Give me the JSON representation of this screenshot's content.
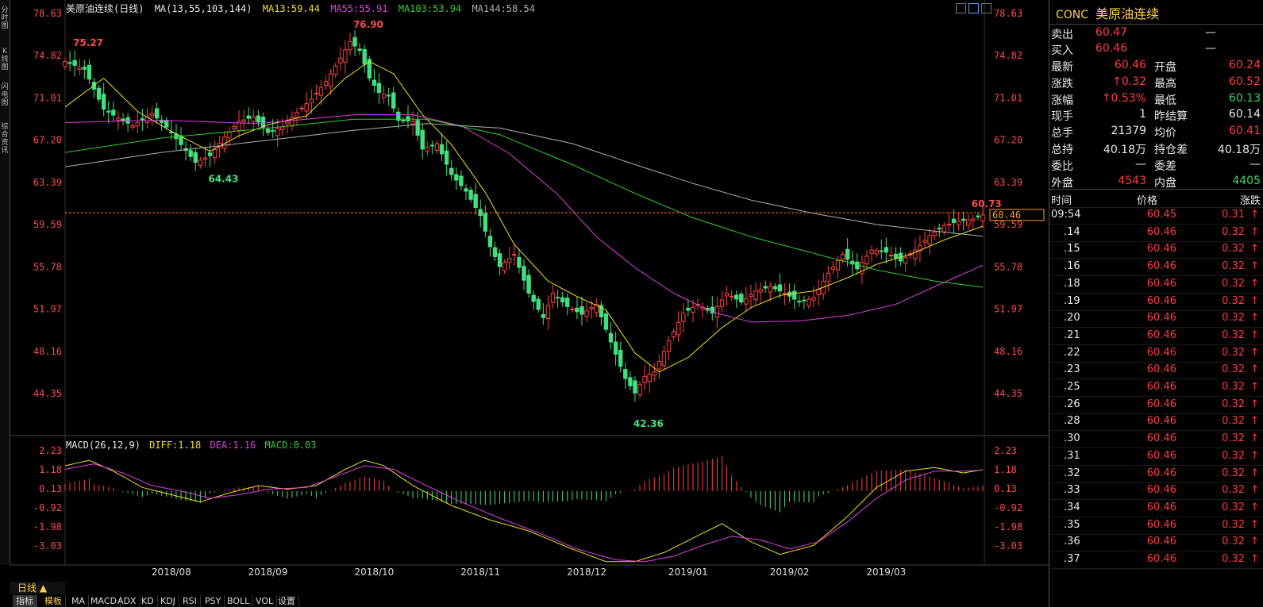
{
  "sidebar_tabs": [
    "分时图",
    "K线图",
    "闪电图",
    "综合资讯"
  ],
  "header": {
    "name": "美原油连续(日线)",
    "ma_label": "MA(13,55,103,144)",
    "ma13": "MA13:59.44",
    "ma55": "MA55:55.91",
    "ma103": "MA103:53.94",
    "ma144": "MA144:58.54"
  },
  "macd_header": {
    "params": "MACD(26,12,9)",
    "diff": "DIFF:1.18",
    "dea": "DEA:1.16",
    "macd": "MACD:0.03"
  },
  "chart_data": {
    "type": "line",
    "title": "美原油连续(日线)",
    "price_axis": [
      "78.63",
      "74.82",
      "71.01",
      "67.20",
      "63.39",
      "59.59",
      "55.78",
      "51.97",
      "48.16",
      "44.35"
    ],
    "macd_axis": [
      "2.23",
      "1.18",
      "0.13",
      "-0.92",
      "-1.98",
      "-3.03"
    ],
    "x_labels": [
      "2018/08",
      "2018/09",
      "2018/10",
      "2018/11",
      "2018/12",
      "2019/01",
      "2019/02",
      "2019/03"
    ],
    "annotations": {
      "high": "76.90",
      "low": "42.36",
      "early_high": "75.27",
      "mid_low": "64.43",
      "last_high": "60.73",
      "current_price": "60.46"
    },
    "close_path": [
      [
        0,
        74.3
      ],
      [
        4,
        73.6
      ],
      [
        8,
        70.0
      ],
      [
        11,
        69.2
      ],
      [
        14,
        68.5
      ],
      [
        18,
        69.6
      ],
      [
        21,
        68.4
      ],
      [
        24,
        66.8
      ],
      [
        27,
        65.2
      ],
      [
        30,
        65.8
      ],
      [
        33,
        67.5
      ],
      [
        36,
        68.9
      ],
      [
        39,
        69.3
      ],
      [
        42,
        67.9
      ],
      [
        45,
        68.4
      ],
      [
        48,
        69.7
      ],
      [
        51,
        70.9
      ],
      [
        54,
        72.5
      ],
      [
        57,
        74.6
      ],
      [
        59,
        76.1
      ],
      [
        61,
        75.3
      ],
      [
        63,
        72.8
      ],
      [
        65,
        71.5
      ],
      [
        67,
        71.2
      ],
      [
        69,
        69.0
      ],
      [
        72,
        68.9
      ],
      [
        74,
        66.4
      ],
      [
        77,
        66.9
      ],
      [
        80,
        64.1
      ],
      [
        83,
        62.6
      ],
      [
        86,
        60.4
      ],
      [
        88,
        57.6
      ],
      [
        90,
        55.8
      ],
      [
        93,
        56.9
      ],
      [
        96,
        53.4
      ],
      [
        99,
        51.2
      ],
      [
        101,
        53.4
      ],
      [
        104,
        52.2
      ],
      [
        107,
        51.5
      ],
      [
        110,
        52.4
      ],
      [
        113,
        49.0
      ],
      [
        116,
        45.7
      ],
      [
        118,
        44.4
      ],
      [
        120,
        45.9
      ],
      [
        122,
        46.3
      ],
      [
        125,
        49.1
      ],
      [
        128,
        51.6
      ],
      [
        131,
        52.4
      ],
      [
        134,
        51.6
      ],
      [
        137,
        53.4
      ],
      [
        140,
        52.6
      ],
      [
        143,
        53.6
      ],
      [
        146,
        54.0
      ],
      [
        149,
        53.4
      ],
      [
        152,
        52.6
      ],
      [
        155,
        53.0
      ],
      [
        158,
        55.2
      ],
      [
        161,
        56.9
      ],
      [
        164,
        55.6
      ],
      [
        167,
        57.3
      ],
      [
        170,
        57.1
      ],
      [
        173,
        56.3
      ],
      [
        176,
        57.3
      ],
      [
        179,
        58.6
      ],
      [
        182,
        59.5
      ],
      [
        185,
        59.9
      ],
      [
        188,
        60.1
      ],
      [
        190,
        60.46
      ]
    ],
    "series": [
      {
        "name": "MA13",
        "color": "#f0e020",
        "points": [
          [
            0,
            70.2
          ],
          [
            8,
            72.8
          ],
          [
            15,
            69.8
          ],
          [
            22,
            68.0
          ],
          [
            30,
            66.2
          ],
          [
            36,
            67.6
          ],
          [
            42,
            68.6
          ],
          [
            50,
            69.4
          ],
          [
            58,
            72.8
          ],
          [
            63,
            74.3
          ],
          [
            68,
            73.2
          ],
          [
            74,
            69.5
          ],
          [
            80,
            66.8
          ],
          [
            87,
            62.5
          ],
          [
            93,
            57.8
          ],
          [
            100,
            54.5
          ],
          [
            106,
            53.1
          ],
          [
            112,
            51.9
          ],
          [
            118,
            48.0
          ],
          [
            123,
            46.3
          ],
          [
            129,
            47.6
          ],
          [
            136,
            50.3
          ],
          [
            142,
            52.1
          ],
          [
            148,
            53.2
          ],
          [
            155,
            53.6
          ],
          [
            162,
            54.8
          ],
          [
            168,
            56.0
          ],
          [
            175,
            56.9
          ],
          [
            182,
            58.2
          ],
          [
            190,
            59.44
          ]
        ]
      },
      {
        "name": "MA55",
        "color": "#e040e0",
        "points": [
          [
            0,
            68.8
          ],
          [
            20,
            69.0
          ],
          [
            40,
            68.7
          ],
          [
            60,
            69.5
          ],
          [
            72,
            69.5
          ],
          [
            82,
            68.5
          ],
          [
            92,
            66.0
          ],
          [
            102,
            62.3
          ],
          [
            110,
            58.5
          ],
          [
            118,
            55.7
          ],
          [
            126,
            53.4
          ],
          [
            134,
            51.7
          ],
          [
            142,
            50.8
          ],
          [
            152,
            50.9
          ],
          [
            162,
            51.4
          ],
          [
            172,
            52.4
          ],
          [
            180,
            54.0
          ],
          [
            190,
            55.91
          ]
        ]
      },
      {
        "name": "MA103",
        "color": "#30d030",
        "points": [
          [
            0,
            66.1
          ],
          [
            20,
            67.4
          ],
          [
            40,
            68.2
          ],
          [
            60,
            69.1
          ],
          [
            75,
            69.1
          ],
          [
            90,
            67.7
          ],
          [
            105,
            65.0
          ],
          [
            118,
            62.4
          ],
          [
            130,
            60.2
          ],
          [
            142,
            58.5
          ],
          [
            155,
            57.0
          ],
          [
            168,
            55.5
          ],
          [
            180,
            54.5
          ],
          [
            190,
            53.94
          ]
        ]
      },
      {
        "name": "MA144",
        "color": "#b0b0b0",
        "points": [
          [
            0,
            64.8
          ],
          [
            20,
            66.1
          ],
          [
            40,
            67.1
          ],
          [
            60,
            68.1
          ],
          [
            75,
            68.7
          ],
          [
            90,
            68.3
          ],
          [
            105,
            66.9
          ],
          [
            118,
            65.0
          ],
          [
            130,
            63.3
          ],
          [
            142,
            61.8
          ],
          [
            155,
            60.6
          ],
          [
            168,
            59.6
          ],
          [
            180,
            59.0
          ],
          [
            190,
            58.54
          ]
        ]
      }
    ],
    "macd_series": [
      {
        "name": "DIFF",
        "color": "#f0e020",
        "points": [
          [
            0,
            1.4
          ],
          [
            5,
            1.7
          ],
          [
            10,
            1.1
          ],
          [
            16,
            0.2
          ],
          [
            22,
            -0.2
          ],
          [
            28,
            -0.6
          ],
          [
            34,
            -0.1
          ],
          [
            40,
            0.3
          ],
          [
            46,
            0.1
          ],
          [
            52,
            0.3
          ],
          [
            58,
            1.2
          ],
          [
            62,
            1.7
          ],
          [
            66,
            1.4
          ],
          [
            72,
            0.3
          ],
          [
            80,
            -0.8
          ],
          [
            88,
            -1.6
          ],
          [
            96,
            -2.2
          ],
          [
            104,
            -3.1
          ],
          [
            112,
            -3.9
          ],
          [
            118,
            -3.9
          ],
          [
            124,
            -3.4
          ],
          [
            130,
            -2.6
          ],
          [
            136,
            -1.8
          ],
          [
            142,
            -2.8
          ],
          [
            148,
            -3.5
          ],
          [
            155,
            -3.0
          ],
          [
            162,
            -1.4
          ],
          [
            168,
            0.2
          ],
          [
            174,
            1.1
          ],
          [
            180,
            1.3
          ],
          [
            186,
            1.0
          ],
          [
            190,
            1.18
          ]
        ]
      },
      {
        "name": "DEA",
        "color": "#e040e0",
        "points": [
          [
            0,
            1.2
          ],
          [
            6,
            1.5
          ],
          [
            12,
            1.0
          ],
          [
            18,
            0.3
          ],
          [
            24,
            0.0
          ],
          [
            30,
            -0.4
          ],
          [
            36,
            -0.2
          ],
          [
            42,
            0.1
          ],
          [
            50,
            0.2
          ],
          [
            56,
            0.8
          ],
          [
            62,
            1.4
          ],
          [
            68,
            1.2
          ],
          [
            74,
            0.4
          ],
          [
            82,
            -0.6
          ],
          [
            90,
            -1.5
          ],
          [
            98,
            -2.3
          ],
          [
            106,
            -3.2
          ],
          [
            114,
            -3.8
          ],
          [
            120,
            -3.9
          ],
          [
            126,
            -3.6
          ],
          [
            132,
            -3.0
          ],
          [
            138,
            -2.5
          ],
          [
            144,
            -2.7
          ],
          [
            150,
            -3.2
          ],
          [
            156,
            -2.8
          ],
          [
            162,
            -1.7
          ],
          [
            168,
            -0.4
          ],
          [
            174,
            0.6
          ],
          [
            180,
            1.1
          ],
          [
            186,
            1.1
          ],
          [
            190,
            1.16
          ]
        ]
      }
    ]
  },
  "panel": {
    "code": "CONC",
    "name": "美原油连续",
    "sell": {
      "label": "卖出",
      "price": "60.47",
      "vol": "—"
    },
    "buy": {
      "label": "买入",
      "price": "60.46",
      "vol": "—"
    },
    "rows": [
      {
        "l1": "最新",
        "v1": "60.46",
        "l2": "开盘",
        "v2": "60.24",
        "c1": "red",
        "c2": "red"
      },
      {
        "l1": "涨跌",
        "v1": "↑0.32",
        "l2": "最高",
        "v2": "60.52",
        "c1": "red",
        "c2": "red"
      },
      {
        "l1": "涨幅",
        "v1": "↑0.53%",
        "l2": "最低",
        "v2": "60.13",
        "c1": "red",
        "c2": "green"
      },
      {
        "l1": "现手",
        "v1": "1",
        "l2": "昨结算",
        "v2": "60.14",
        "c1": "white",
        "c2": "white"
      },
      {
        "l1": "总手",
        "v1": "21379",
        "l2": "均价",
        "v2": "60.41",
        "c1": "white",
        "c2": "red"
      },
      {
        "l1": "总持",
        "v1": "40.18万",
        "l2": "持仓差",
        "v2": "40.18万",
        "c1": "white",
        "c2": "white"
      },
      {
        "l1": "委比",
        "v1": "—",
        "l2": "委差",
        "v2": "—",
        "c1": "white",
        "c2": "white"
      },
      {
        "l1": "外盘",
        "v1": "4543",
        "l2": "内盘",
        "v2": "4405",
        "c1": "red",
        "c2": "green"
      }
    ],
    "tick_header": {
      "time": "时间",
      "price": "价格",
      "change": "涨跌"
    },
    "ticks": [
      {
        "t": "09:54",
        "p": "60.45",
        "c": "0.31"
      },
      {
        "t": ".14",
        "p": "60.46",
        "c": "0.32"
      },
      {
        "t": ".15",
        "p": "60.46",
        "c": "0.32"
      },
      {
        "t": ".16",
        "p": "60.46",
        "c": "0.32"
      },
      {
        "t": ".18",
        "p": "60.46",
        "c": "0.32"
      },
      {
        "t": ".19",
        "p": "60.46",
        "c": "0.32"
      },
      {
        "t": ".20",
        "p": "60.46",
        "c": "0.32"
      },
      {
        "t": ".21",
        "p": "60.46",
        "c": "0.32"
      },
      {
        "t": ".22",
        "p": "60.46",
        "c": "0.32"
      },
      {
        "t": ".23",
        "p": "60.46",
        "c": "0.32"
      },
      {
        "t": ".25",
        "p": "60.46",
        "c": "0.32"
      },
      {
        "t": ".26",
        "p": "60.46",
        "c": "0.32"
      },
      {
        "t": ".28",
        "p": "60.46",
        "c": "0.32"
      },
      {
        "t": ".30",
        "p": "60.46",
        "c": "0.32"
      },
      {
        "t": ".31",
        "p": "60.46",
        "c": "0.32"
      },
      {
        "t": ".32",
        "p": "60.46",
        "c": "0.32"
      },
      {
        "t": ".33",
        "p": "60.46",
        "c": "0.32"
      },
      {
        "t": ".34",
        "p": "60.46",
        "c": "0.32"
      },
      {
        "t": ".35",
        "p": "60.46",
        "c": "0.32"
      },
      {
        "t": ".36",
        "p": "60.46",
        "c": "0.32"
      },
      {
        "t": ".37",
        "p": "60.46",
        "c": "0.32"
      }
    ]
  },
  "bottom": {
    "period": "日线 ▲",
    "tabs": [
      "指标",
      "模板",
      "MA",
      "MACD",
      "ADX",
      "KD",
      "KDJ",
      "RSI",
      "PSY",
      "BOLL",
      "VOL",
      "设置"
    ]
  }
}
